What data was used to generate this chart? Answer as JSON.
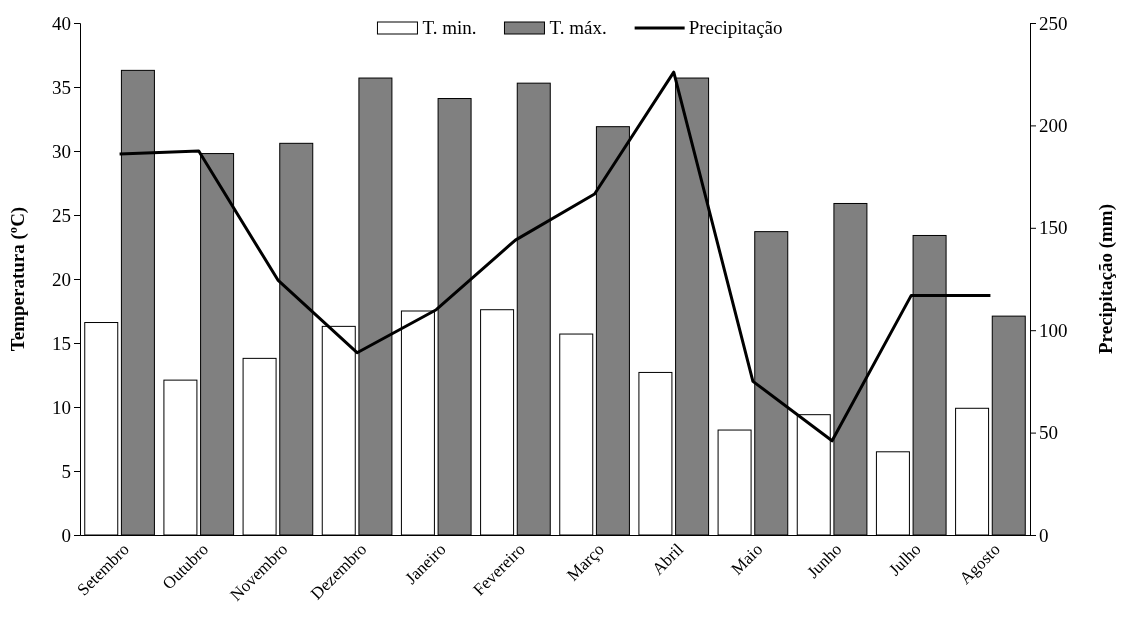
{
  "chart_data": {
    "type": "bar",
    "xlabel": null,
    "ylabel": "Temperatura (ºC)",
    "y2label": "Precipitação (mm)",
    "categories": [
      "Setembro",
      "Outubro",
      "Novembro",
      "Dezembro",
      "Janeiro",
      "Fevereiro",
      "Março",
      "Abril",
      "Maio",
      "Junho",
      "Julho",
      "Agosto"
    ],
    "series": [
      {
        "name": "T. min.",
        "color": "#ffffff",
        "values": [
          16.6,
          12.1,
          13.8,
          16.3,
          17.5,
          17.6,
          15.7,
          12.7,
          8.2,
          9.4,
          6.5,
          9.9
        ]
      },
      {
        "name": "T. máx.",
        "color": "#808080",
        "values": [
          36.3,
          29.8,
          30.6,
          35.7,
          34.1,
          35.3,
          31.9,
          35.7,
          23.7,
          25.9,
          23.4,
          17.1
        ]
      },
      {
        "name": "Precipitação",
        "type": "line",
        "axis": "y2",
        "color": "#000000",
        "values": [
          186,
          187.5,
          124.5,
          89,
          110,
          144,
          166.5,
          226,
          75,
          46,
          117,
          117
        ]
      }
    ],
    "ylim": [
      0,
      40
    ],
    "yticks": [
      0,
      5,
      10,
      15,
      20,
      25,
      30,
      35,
      40
    ],
    "y2lim": [
      0,
      250
    ],
    "y2ticks": [
      0,
      50,
      100,
      150,
      200,
      250
    ],
    "grid": false,
    "legend": "top",
    "marker": "none",
    "line_style": "solid"
  }
}
